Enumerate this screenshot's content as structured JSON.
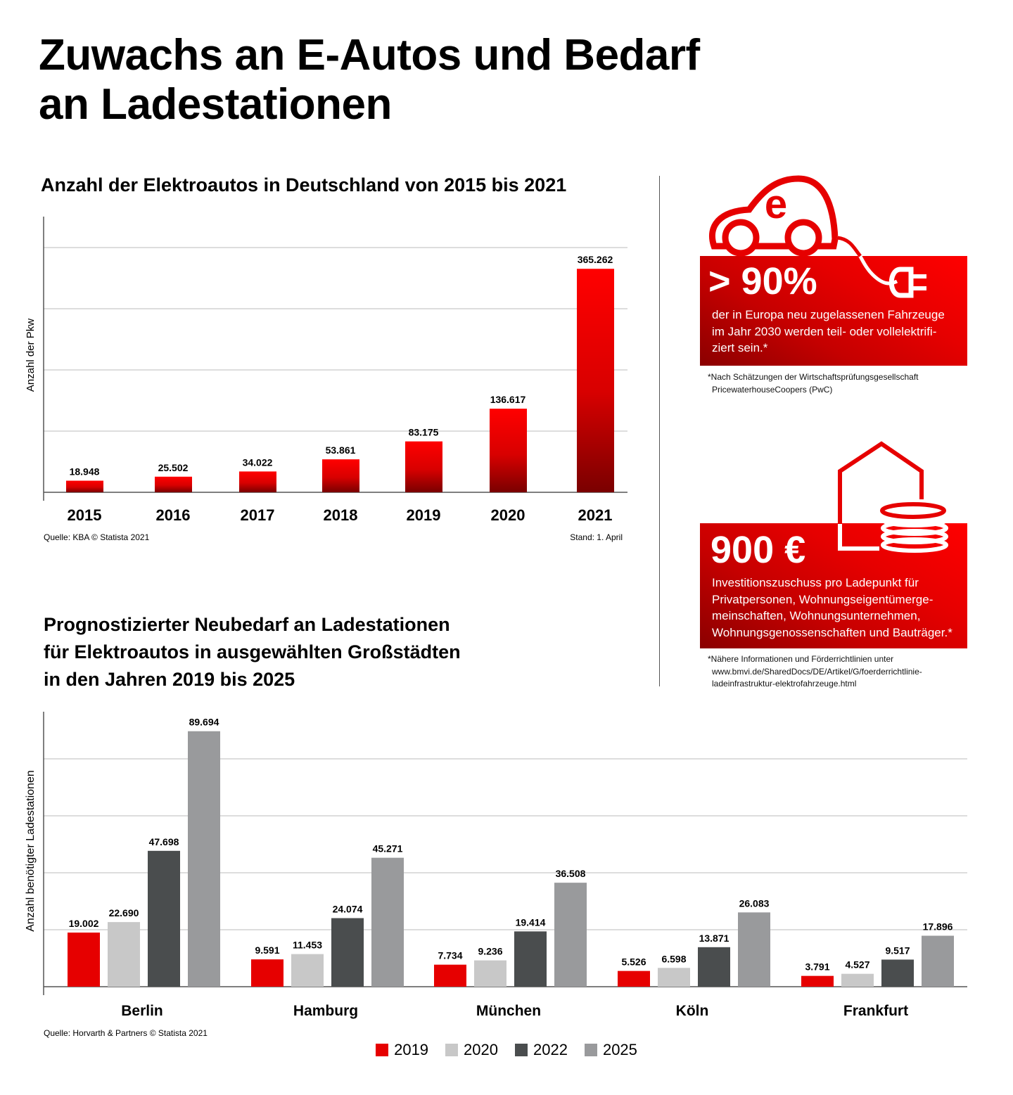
{
  "title_line1": "Zuwachs an E-Autos und Bedarf",
  "title_line2": "an Ladestationen",
  "colors": {
    "red": "#e60000",
    "light_grey": "#c8c8c8",
    "dark_grey": "#4a4d4e",
    "mid_grey": "#999a9c"
  },
  "chart_data": [
    {
      "type": "bar",
      "title": "Anzahl der Elektroautos in Deutschland von 2015 bis 2021",
      "ylabel": "Anzahl der Pkw",
      "xlabel": "",
      "categories": [
        "2015",
        "2016",
        "2017",
        "2018",
        "2019",
        "2020",
        "2021"
      ],
      "values": [
        18948,
        25502,
        34022,
        53861,
        83175,
        136617,
        365262
      ],
      "value_labels": [
        "18.948",
        "25.502",
        "34.022",
        "53.861",
        "83.175",
        "136.617",
        "365.262"
      ],
      "ylim": [
        0,
        400000
      ],
      "grid": true,
      "source": "Quelle: KBA © Statista 2021",
      "note": "Stand: 1. April"
    },
    {
      "type": "bar",
      "title_lines": [
        "Prognostizierter Neubedarf an Ladestationen",
        "für Elektroautos in ausgewählten Großstädten",
        "in den Jahren 2019 bis 2025"
      ],
      "ylabel": "Anzahl benötigter Ladestationen",
      "xlabel": "",
      "categories": [
        "Berlin",
        "Hamburg",
        "München",
        "Köln",
        "Frankfurt"
      ],
      "series": [
        {
          "name": "2019",
          "color": "#e60000",
          "values": [
            19002,
            9591,
            7734,
            5526,
            3791
          ],
          "labels": [
            "19.002",
            "9.591",
            "7.734",
            "5.526",
            "3.791"
          ]
        },
        {
          "name": "2020",
          "color": "#c8c8c8",
          "values": [
            22690,
            11453,
            9236,
            6598,
            4527
          ],
          "labels": [
            "22.690",
            "11.453",
            "9.236",
            "6.598",
            "4.527"
          ]
        },
        {
          "name": "2022",
          "color": "#4a4d4e",
          "values": [
            47698,
            24074,
            19414,
            13871,
            9517
          ],
          "labels": [
            "47.698",
            "24.074",
            "19.414",
            "13.871",
            "9.517"
          ]
        },
        {
          "name": "2025",
          "color": "#999a9c",
          "values": [
            89694,
            45271,
            36508,
            26083,
            17896
          ],
          "labels": [
            "89.694",
            "45.271",
            "36.508",
            "26.083",
            "17.896"
          ]
        }
      ],
      "ylim": [
        0,
        96000
      ],
      "grid": true,
      "legend": "bottom",
      "source": "Quelle: Horvarth & Partners © Statista 2021"
    }
  ],
  "panel1": {
    "icon": "electric-car-icon",
    "car_letter": "e",
    "big": "> 90%",
    "text": [
      "der in Europa neu zugelassenen Fahrzeuge",
      "im Jahr 2030 werden teil- oder vollelektrifi-",
      "ziert sein.*"
    ],
    "note": [
      "*Nach Schätzungen der Wirtschaftsprüfungsgesellschaft",
      "PricewaterhouseCoopers (PwC)"
    ]
  },
  "panel2": {
    "icon": "house-coins-icon",
    "big": "900 €",
    "text": [
      "Investitionszuschuss pro Ladepunkt für",
      "Privatpersonen, Wohnungseigentümerge-",
      "meinschaften, Wohnungsunternehmen,",
      "Wohnungsgenossenschaften und Bauträger.*"
    ],
    "note": [
      "*Nähere Informationen und Förderrichtlinien unter",
      "www.bmvi.de/SharedDocs/DE/Artikel/G/foerderrichtlinie-",
      "ladeinfrastruktur-elektrofahrzeuge.html"
    ]
  }
}
